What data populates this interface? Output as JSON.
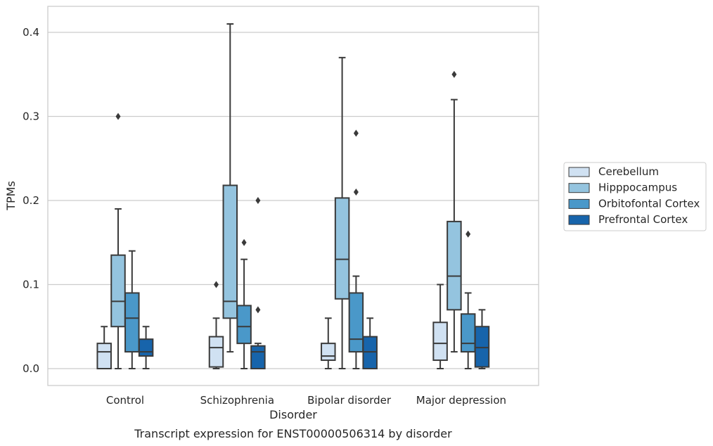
{
  "chart_data": {
    "type": "box",
    "categories": [
      "Control",
      "Schizophrenia",
      "Bipolar disorder",
      "Major depression"
    ],
    "xlabel": "Disorder",
    "ylabel": "TPMs",
    "ylim": [
      -0.02,
      0.43
    ],
    "yticks": [
      0.0,
      0.1,
      0.2,
      0.3,
      0.4
    ],
    "ytick_labels": [
      "0.0",
      "0.1",
      "0.2",
      "0.3",
      "0.4"
    ],
    "grid": "horizontal",
    "legend_position": "right",
    "series": [
      {
        "name": "Cerebellum",
        "color": "#d0e1f2",
        "boxes": [
          {
            "whislo": 0.0,
            "q1": 0.0,
            "med": 0.02,
            "q3": 0.03,
            "whishi": 0.05,
            "fliers": []
          },
          {
            "whislo": 0.0,
            "q1": 0.002,
            "med": 0.025,
            "q3": 0.038,
            "whishi": 0.06,
            "fliers": [
              0.1
            ]
          },
          {
            "whislo": 0.0,
            "q1": 0.01,
            "med": 0.015,
            "q3": 0.03,
            "whishi": 0.06,
            "fliers": []
          },
          {
            "whislo": 0.0,
            "q1": 0.01,
            "med": 0.03,
            "q3": 0.055,
            "whishi": 0.1,
            "fliers": []
          }
        ]
      },
      {
        "name": "Hipppocampus",
        "color": "#94c4df",
        "boxes": [
          {
            "whislo": 0.0,
            "q1": 0.05,
            "med": 0.08,
            "q3": 0.135,
            "whishi": 0.19,
            "fliers": [
              0.3
            ]
          },
          {
            "whislo": 0.02,
            "q1": 0.06,
            "med": 0.08,
            "q3": 0.218,
            "whishi": 0.41,
            "fliers": []
          },
          {
            "whislo": 0.0,
            "q1": 0.083,
            "med": 0.13,
            "q3": 0.203,
            "whishi": 0.37,
            "fliers": []
          },
          {
            "whislo": 0.02,
            "q1": 0.07,
            "med": 0.11,
            "q3": 0.175,
            "whishi": 0.32,
            "fliers": [
              0.35
            ]
          }
        ]
      },
      {
        "name": "Orbitofontal Cortex",
        "color": "#4a98c9",
        "boxes": [
          {
            "whislo": 0.0,
            "q1": 0.02,
            "med": 0.06,
            "q3": 0.09,
            "whishi": 0.14,
            "fliers": []
          },
          {
            "whislo": 0.0,
            "q1": 0.03,
            "med": 0.05,
            "q3": 0.075,
            "whishi": 0.13,
            "fliers": [
              0.15
            ]
          },
          {
            "whislo": 0.0,
            "q1": 0.02,
            "med": 0.035,
            "q3": 0.09,
            "whishi": 0.11,
            "fliers": [
              0.28,
              0.21
            ]
          },
          {
            "whislo": 0.0,
            "q1": 0.02,
            "med": 0.03,
            "q3": 0.065,
            "whishi": 0.09,
            "fliers": [
              0.16
            ]
          }
        ]
      },
      {
        "name": "Prefrontal Cortex",
        "color": "#1764ab",
        "boxes": [
          {
            "whislo": 0.0,
            "q1": 0.015,
            "med": 0.02,
            "q3": 0.035,
            "whishi": 0.05,
            "fliers": []
          },
          {
            "whislo": 0.0,
            "q1": 0.0,
            "med": 0.02,
            "q3": 0.027,
            "whishi": 0.03,
            "fliers": [
              0.2,
              0.07
            ]
          },
          {
            "whislo": 0.0,
            "q1": 0.0,
            "med": 0.02,
            "q3": 0.038,
            "whishi": 0.06,
            "fliers": []
          },
          {
            "whislo": 0.0,
            "q1": 0.002,
            "med": 0.025,
            "q3": 0.05,
            "whishi": 0.07,
            "fliers": []
          }
        ]
      }
    ]
  },
  "caption": "Transcript expression for ENST00000506314 by disorder"
}
